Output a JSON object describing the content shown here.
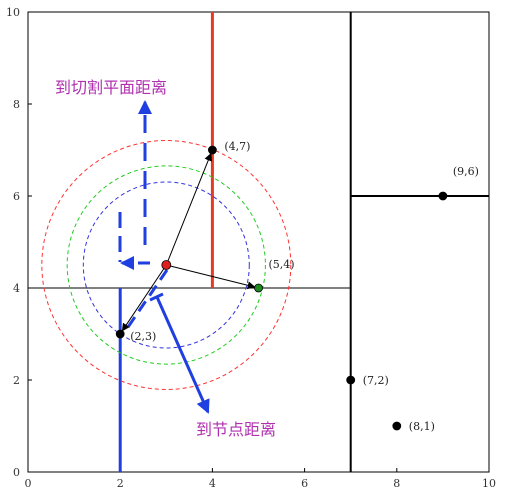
{
  "chart_data": {
    "type": "scatter",
    "title": "",
    "xlabel": "",
    "ylabel": "",
    "xlim": [
      0,
      10
    ],
    "ylim": [
      0,
      10
    ],
    "x_ticks": [
      "0",
      "2",
      "4",
      "6",
      "8",
      "10"
    ],
    "y_ticks": [
      "0",
      "2",
      "4",
      "6",
      "8",
      "10"
    ],
    "grid": false,
    "points": [
      {
        "x": 2,
        "y": 3,
        "label": "(2,3)"
      },
      {
        "x": 5,
        "y": 4,
        "label": "(5,4)"
      },
      {
        "x": 9,
        "y": 6,
        "label": "(9,6)"
      },
      {
        "x": 4,
        "y": 7,
        "label": "(4,7)"
      },
      {
        "x": 8,
        "y": 1,
        "label": "(8,1)"
      },
      {
        "x": 7,
        "y": 2,
        "label": "(7,2)"
      }
    ],
    "query_point": {
      "x": 3,
      "y": 4.5
    },
    "split_lines": [
      {
        "orientation": "vertical",
        "x": 7,
        "y_from": 0,
        "y_to": 10,
        "color": "#000000"
      },
      {
        "orientation": "horizontal",
        "y": 4,
        "x_from": 0,
        "x_to": 7,
        "color": "#000000"
      },
      {
        "orientation": "horizontal",
        "y": 6,
        "x_from": 7,
        "x_to": 10,
        "color": "#000000"
      },
      {
        "orientation": "vertical",
        "x": 2,
        "y_from": 0,
        "y_to": 4,
        "color": "#1f3fe0"
      },
      {
        "orientation": "vertical",
        "x": 4,
        "y_from": 4,
        "y_to": 10,
        "color": "#e83a22"
      }
    ],
    "search_circles": [
      {
        "radius": 2.7,
        "color": "#ff3333"
      },
      {
        "radius": 2.15,
        "color": "#22cc22"
      },
      {
        "radius": 1.8,
        "color": "#3333dd"
      }
    ],
    "annotations": [
      {
        "text": "到切割平面距离",
        "color": "#b030b0"
      },
      {
        "text": "到节点距离",
        "color": "#b030b0"
      }
    ],
    "colors": {
      "accent_blue": "#1f3fe0",
      "accent_red": "#e83a22",
      "annotation": "#b030b0",
      "query": "#e02020"
    }
  }
}
